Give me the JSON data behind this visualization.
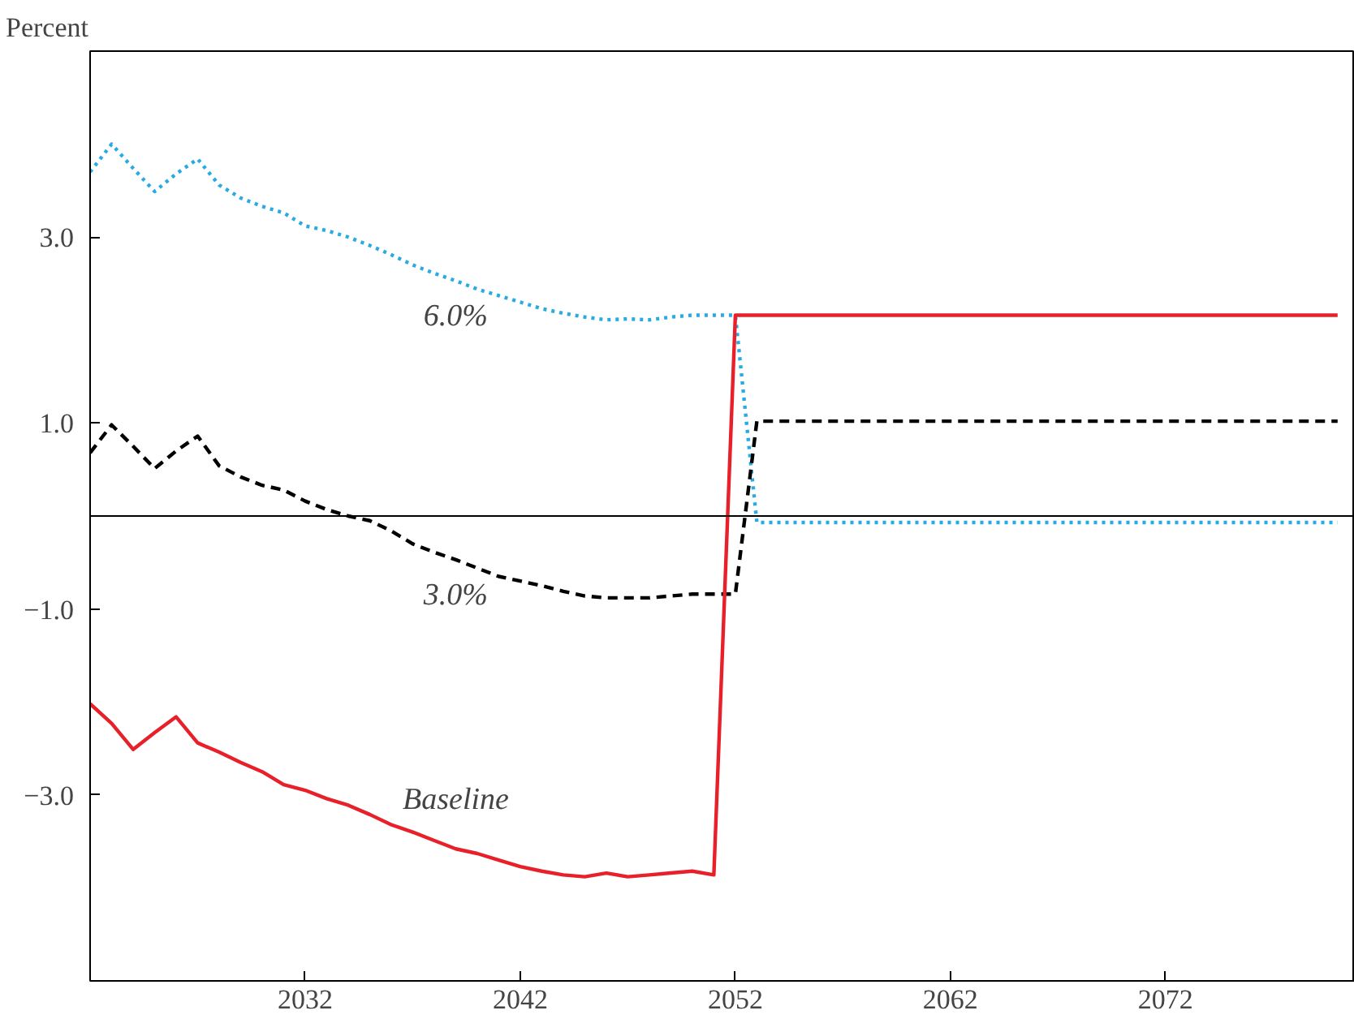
{
  "chart_data": {
    "type": "line",
    "ylabel": "Percent",
    "x": [
      2022,
      2023,
      2024,
      2025,
      2026,
      2027,
      2028,
      2029,
      2030,
      2031,
      2032,
      2033,
      2034,
      2035,
      2036,
      2037,
      2038,
      2039,
      2040,
      2041,
      2042,
      2043,
      2044,
      2045,
      2046,
      2047,
      2048,
      2049,
      2050,
      2051,
      2052,
      2053,
      2080
    ],
    "series": [
      {
        "name": "6.0%",
        "color": "#29abe2",
        "line_style": "dotted",
        "values": [
          3.7,
          4.0,
          3.74,
          3.49,
          3.68,
          3.84,
          3.56,
          3.42,
          3.33,
          3.26,
          3.12,
          3.07,
          3.0,
          2.91,
          2.81,
          2.7,
          2.61,
          2.53,
          2.44,
          2.37,
          2.3,
          2.23,
          2.18,
          2.14,
          2.11,
          2.12,
          2.11,
          2.14,
          2.16,
          2.16,
          2.16,
          -0.07,
          -0.07
        ]
      },
      {
        "name": "3.0%",
        "color": "#000000",
        "line_style": "dashed",
        "values": [
          0.68,
          0.98,
          0.75,
          0.51,
          0.7,
          0.86,
          0.54,
          0.42,
          0.33,
          0.28,
          0.16,
          0.07,
          0.0,
          -0.05,
          -0.16,
          -0.3,
          -0.39,
          -0.47,
          -0.56,
          -0.65,
          -0.7,
          -0.75,
          -0.81,
          -0.86,
          -0.88,
          -0.88,
          -0.88,
          -0.86,
          -0.84,
          -0.84,
          -0.84,
          1.02,
          1.02
        ]
      },
      {
        "name": "Baseline",
        "color": "#e8202a",
        "line_style": "solid",
        "values": [
          -2.02,
          -2.23,
          -2.51,
          -2.33,
          -2.16,
          -2.44,
          -2.54,
          -2.65,
          -2.75,
          -2.89,
          -2.95,
          -3.04,
          -3.11,
          -3.21,
          -3.32,
          -3.4,
          -3.49,
          -3.58,
          -3.63,
          -3.7,
          -3.77,
          -3.82,
          -3.86,
          -3.88,
          -3.84,
          -3.88,
          -3.86,
          -3.84,
          -3.82,
          -3.86,
          2.16,
          2.16,
          2.16
        ]
      }
    ],
    "ref_lines": [
      {
        "axis": "y",
        "value": 0,
        "color": "#000000"
      }
    ],
    "xlim": [
      2022,
      2080.8
    ],
    "ylim": [
      -5.0,
      5.0
    ],
    "xticks": [
      2032,
      2042,
      2052,
      2062,
      2072
    ],
    "yticks": [
      {
        "value": 3,
        "label": "3.0"
      },
      {
        "value": 1,
        "label": "1.0"
      },
      {
        "value": -1,
        "label": "−1.0"
      },
      {
        "value": -3,
        "label": "−3.0"
      }
    ],
    "grid": false
  }
}
